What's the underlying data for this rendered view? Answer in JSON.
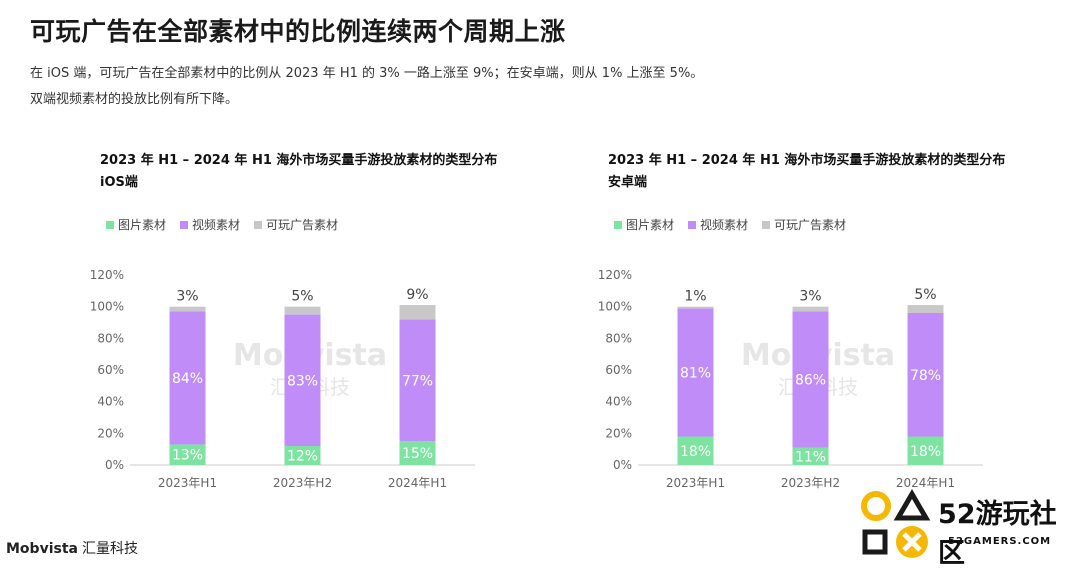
{
  "title": "可玩广告在全部素材中的比例连续两个周期上涨",
  "subtitle_line1": "在 iOS 端，可玩广告在全部素材中的比例从 2023 年 H1 的 3% 一路上涨至 9%；在安卓端，则从 1% 上涨至 5%。",
  "subtitle_line2": "双端视频素材的投放比例有所下降。",
  "colors": {
    "image": "#7ee2a0",
    "video": "#c08cf7",
    "playable": "#c8c8c8"
  },
  "legend": {
    "image": "图片素材",
    "video": "视频素材",
    "playable": "可玩广告素材"
  },
  "chart_data": [
    {
      "type": "bar",
      "stacked": true,
      "title_line1": "2023 年 H1 – 2024 年 H1 海外市场买量手游投放素材的类型分布",
      "title_line2": "iOS端",
      "categories": [
        "2023年H1",
        "2023年H2",
        "2024年H1"
      ],
      "ylim": [
        0,
        120
      ],
      "yticks": [
        "0%",
        "20%",
        "40%",
        "60%",
        "80%",
        "100%",
        "120%"
      ],
      "series": [
        {
          "name": "图片素材",
          "key": "image",
          "values": [
            13,
            12,
            15
          ]
        },
        {
          "name": "视频素材",
          "key": "video",
          "values": [
            84,
            83,
            77
          ]
        },
        {
          "name": "可玩广告素材",
          "key": "playable",
          "values": [
            3,
            5,
            9
          ]
        }
      ],
      "watermark_en": "Mobvista",
      "watermark_cn": "汇量科技"
    },
    {
      "type": "bar",
      "stacked": true,
      "title_line1": "2023 年 H1 – 2024 年 H1 海外市场买量手游投放素材的类型分布",
      "title_line2": "安卓端",
      "categories": [
        "2023年H1",
        "2023年H2",
        "2024年H1"
      ],
      "ylim": [
        0,
        120
      ],
      "yticks": [
        "0%",
        "20%",
        "40%",
        "60%",
        "80%",
        "100%",
        "120%"
      ],
      "series": [
        {
          "name": "图片素材",
          "key": "image",
          "values": [
            18,
            11,
            18
          ]
        },
        {
          "name": "视频素材",
          "key": "video",
          "values": [
            81,
            86,
            78
          ]
        },
        {
          "name": "可玩广告素材",
          "key": "playable",
          "values": [
            1,
            3,
            5
          ]
        }
      ],
      "watermark_en": "Mobvista",
      "watermark_cn": "汇量科技"
    }
  ],
  "footer": {
    "brand_en": "Mobvista",
    "brand_cn": "汇量科技"
  },
  "corner_logo": {
    "text": "52游玩社区",
    "url": "52GAMERS.COM"
  }
}
